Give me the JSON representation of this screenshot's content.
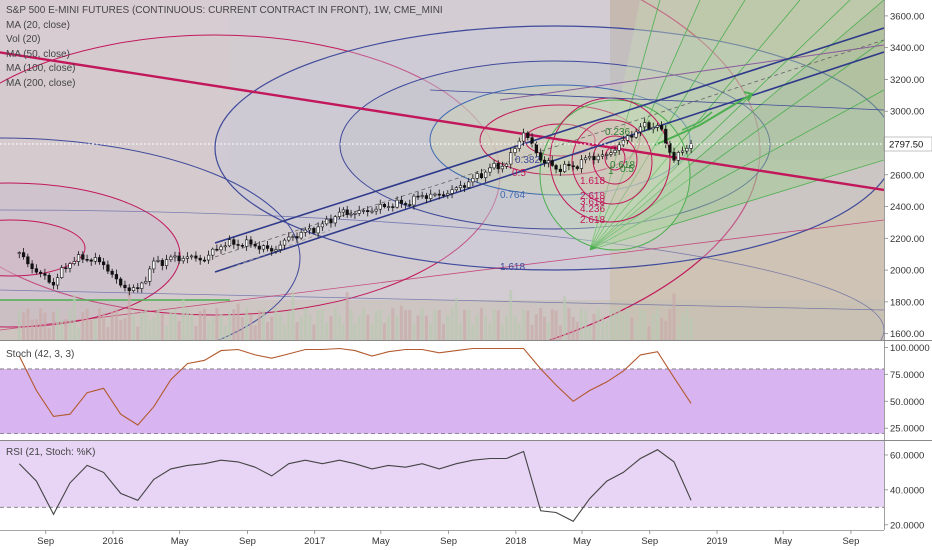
{
  "main_legend": {
    "title": "S&P 500 E-MINI FUTURES (CONTINUOUS: CURRENT CONTRACT IN FRONT), 1W, CME_MINI",
    "ma20": "MA (20, close)",
    "vol": "Vol (20)",
    "ma50": "MA (50, close)",
    "ma100": "MA (100, close)",
    "ma200": "MA (200, close)"
  },
  "stoch_legend": "Stoch (42, 3, 3)",
  "rsi_legend": "RSI (21, Stoch: %K)",
  "current_price": "2797.50",
  "fib_labels": [
    {
      "text": "1.618",
      "color": "#3f4a9a"
    },
    {
      "text": "0.764",
      "color": "#3f6ab0"
    },
    {
      "text": "0.5",
      "color": "#c2185b"
    },
    {
      "text": "0.382",
      "color": "#3f4a9a"
    },
    {
      "text": "1.618",
      "color": "#c2185b"
    },
    {
      "text": "2.618",
      "color": "#c2185b"
    },
    {
      "text": "4.236",
      "color": "#c2185b"
    },
    {
      "text": "3.618",
      "color": "#c2185b"
    },
    {
      "text": "2.618",
      "color": "#c2185b"
    },
    {
      "text": "0.236",
      "color": "#2e7d32"
    },
    {
      "text": "0.618",
      "color": "#2e7d32"
    },
    {
      "text": "1",
      "color": "#2e7d32"
    },
    {
      "text": "0.5",
      "color": "#2e7d32"
    }
  ],
  "colors": {
    "stoch_band": "#d8b4f0",
    "rsi_band": "#e8d4f5",
    "stoch_line": "#b35a2e",
    "rsi_line": "#444444",
    "up_candle": "#ffffff",
    "down_candle": "#111111",
    "fib_pink": "#c2185b",
    "fib_blue": "#3f4a9a",
    "fib_green": "#4caf50"
  },
  "chart_data": [
    {
      "type": "candlestick",
      "title": "S&P 500 E-MINI FUTURES (CONTINUOUS: CURRENT CONTRACT IN FRONT), 1W, CME_MINI",
      "y_axis_ticks": [
        1600,
        1800,
        2000,
        2200,
        2400,
        2600,
        2800,
        3000,
        3200,
        3400,
        3600
      ],
      "y_axis_labels": [
        "1600.00",
        "1800.00",
        "2000.00",
        "2200.00",
        "2400.00",
        "2600.00",
        "2800.00",
        "3000.00",
        "3200.00",
        "3400.00",
        "3600.00"
      ],
      "ylim": [
        1560,
        3700
      ],
      "x_axis_labels": [
        "Sep",
        "2016",
        "May",
        "Sep",
        "2017",
        "May",
        "Sep",
        "2018",
        "May",
        "Sep",
        "2019",
        "May",
        "Sep"
      ],
      "current_value": 2797.5,
      "price_path": [
        {
          "date": "2015-07",
          "close": 2100
        },
        {
          "date": "2015-08",
          "close": 1990
        },
        {
          "date": "2015-09",
          "close": 1920
        },
        {
          "date": "2015-10",
          "close": 2060
        },
        {
          "date": "2015-11",
          "close": 2080
        },
        {
          "date": "2015-12",
          "close": 2040
        },
        {
          "date": "2016-01",
          "close": 1900
        },
        {
          "date": "2016-02",
          "close": 1870
        },
        {
          "date": "2016-03",
          "close": 2040
        },
        {
          "date": "2016-04",
          "close": 2070
        },
        {
          "date": "2016-05",
          "close": 2080
        },
        {
          "date": "2016-06",
          "close": 2070
        },
        {
          "date": "2016-07",
          "close": 2160
        },
        {
          "date": "2016-08",
          "close": 2170
        },
        {
          "date": "2016-09",
          "close": 2160
        },
        {
          "date": "2016-10",
          "close": 2120
        },
        {
          "date": "2016-11",
          "close": 2200
        },
        {
          "date": "2016-12",
          "close": 2240
        },
        {
          "date": "2017-01",
          "close": 2280
        },
        {
          "date": "2017-02",
          "close": 2360
        },
        {
          "date": "2017-03",
          "close": 2360
        },
        {
          "date": "2017-04",
          "close": 2380
        },
        {
          "date": "2017-05",
          "close": 2410
        },
        {
          "date": "2017-06",
          "close": 2420
        },
        {
          "date": "2017-07",
          "close": 2470
        },
        {
          "date": "2017-08",
          "close": 2470
        },
        {
          "date": "2017-09",
          "close": 2510
        },
        {
          "date": "2017-10",
          "close": 2570
        },
        {
          "date": "2017-11",
          "close": 2640
        },
        {
          "date": "2017-12",
          "close": 2670
        },
        {
          "date": "2018-01",
          "close": 2870
        },
        {
          "date": "2018-02",
          "close": 2700
        },
        {
          "date": "2018-03",
          "close": 2640
        },
        {
          "date": "2018-04",
          "close": 2650
        },
        {
          "date": "2018-05",
          "close": 2710
        },
        {
          "date": "2018-06",
          "close": 2720
        },
        {
          "date": "2018-07",
          "close": 2810
        },
        {
          "date": "2018-08",
          "close": 2900
        },
        {
          "date": "2018-09",
          "close": 2915
        },
        {
          "date": "2018-10",
          "close": 2700
        },
        {
          "date": "2018-11",
          "close": 2797.5
        }
      ]
    },
    {
      "type": "line",
      "title": "Stoch (42, 3, 3)",
      "y_axis_ticks": [
        25,
        50,
        75,
        100
      ],
      "y_axis_labels": [
        "25.0000",
        "50.0000",
        "75.0000",
        "100.0000"
      ],
      "ylim": [
        15,
        105
      ],
      "bands": [
        20,
        80
      ],
      "series": [
        {
          "name": "Stoch (42, 3, 3)",
          "values": [
            {
              "date": "2015-07",
              "value": 92
            },
            {
              "date": "2015-08",
              "value": 60
            },
            {
              "date": "2015-09",
              "value": 36
            },
            {
              "date": "2015-10",
              "value": 38
            },
            {
              "date": "2015-11",
              "value": 58
            },
            {
              "date": "2015-12",
              "value": 62
            },
            {
              "date": "2016-01",
              "value": 38
            },
            {
              "date": "2016-02",
              "value": 28
            },
            {
              "date": "2016-03",
              "value": 45
            },
            {
              "date": "2016-04",
              "value": 70
            },
            {
              "date": "2016-05",
              "value": 85
            },
            {
              "date": "2016-06",
              "value": 88
            },
            {
              "date": "2016-07",
              "value": 97
            },
            {
              "date": "2016-08",
              "value": 98
            },
            {
              "date": "2016-09",
              "value": 93
            },
            {
              "date": "2016-10",
              "value": 90
            },
            {
              "date": "2016-11",
              "value": 94
            },
            {
              "date": "2016-12",
              "value": 98
            },
            {
              "date": "2017-01",
              "value": 98
            },
            {
              "date": "2017-02",
              "value": 99
            },
            {
              "date": "2017-03",
              "value": 97
            },
            {
              "date": "2017-04",
              "value": 92
            },
            {
              "date": "2017-05",
              "value": 96
            },
            {
              "date": "2017-06",
              "value": 98
            },
            {
              "date": "2017-07",
              "value": 98
            },
            {
              "date": "2017-08",
              "value": 95
            },
            {
              "date": "2017-09",
              "value": 97
            },
            {
              "date": "2017-10",
              "value": 99
            },
            {
              "date": "2017-11",
              "value": 99
            },
            {
              "date": "2017-12",
              "value": 99
            },
            {
              "date": "2018-01",
              "value": 99
            },
            {
              "date": "2018-02",
              "value": 80
            },
            {
              "date": "2018-03",
              "value": 65
            },
            {
              "date": "2018-04",
              "value": 50
            },
            {
              "date": "2018-05",
              "value": 60
            },
            {
              "date": "2018-06",
              "value": 68
            },
            {
              "date": "2018-07",
              "value": 78
            },
            {
              "date": "2018-08",
              "value": 93
            },
            {
              "date": "2018-09",
              "value": 96
            },
            {
              "date": "2018-10",
              "value": 72
            },
            {
              "date": "2018-11",
              "value": 48
            }
          ]
        }
      ]
    },
    {
      "type": "line",
      "title": "RSI (21, Stoch: %K)",
      "y_axis_ticks": [
        20,
        40,
        60
      ],
      "y_axis_labels": [
        "20.0000",
        "40.0000",
        "60.0000"
      ],
      "ylim": [
        17,
        68
      ],
      "bands": [
        30,
        70
      ],
      "series": [
        {
          "name": "RSI (21, Stoch: %K)",
          "values": [
            {
              "date": "2015-07",
              "value": 55
            },
            {
              "date": "2015-08",
              "value": 45
            },
            {
              "date": "2015-09",
              "value": 26
            },
            {
              "date": "2015-10",
              "value": 44
            },
            {
              "date": "2015-11",
              "value": 54
            },
            {
              "date": "2015-12",
              "value": 50
            },
            {
              "date": "2016-01",
              "value": 38
            },
            {
              "date": "2016-02",
              "value": 34
            },
            {
              "date": "2016-03",
              "value": 46
            },
            {
              "date": "2016-04",
              "value": 52
            },
            {
              "date": "2016-05",
              "value": 54
            },
            {
              "date": "2016-06",
              "value": 55
            },
            {
              "date": "2016-07",
              "value": 57
            },
            {
              "date": "2016-08",
              "value": 56
            },
            {
              "date": "2016-09",
              "value": 53
            },
            {
              "date": "2016-10",
              "value": 48
            },
            {
              "date": "2016-11",
              "value": 55
            },
            {
              "date": "2016-12",
              "value": 57
            },
            {
              "date": "2017-01",
              "value": 55
            },
            {
              "date": "2017-02",
              "value": 57
            },
            {
              "date": "2017-03",
              "value": 55
            },
            {
              "date": "2017-04",
              "value": 52
            },
            {
              "date": "2017-05",
              "value": 54
            },
            {
              "date": "2017-06",
              "value": 53
            },
            {
              "date": "2017-07",
              "value": 55
            },
            {
              "date": "2017-08",
              "value": 52
            },
            {
              "date": "2017-09",
              "value": 55
            },
            {
              "date": "2017-10",
              "value": 57
            },
            {
              "date": "2017-11",
              "value": 58
            },
            {
              "date": "2017-12",
              "value": 58
            },
            {
              "date": "2018-01",
              "value": 62
            },
            {
              "date": "2018-02",
              "value": 28
            },
            {
              "date": "2018-03",
              "value": 27
            },
            {
              "date": "2018-04",
              "value": 22
            },
            {
              "date": "2018-05",
              "value": 35
            },
            {
              "date": "2018-06",
              "value": 45
            },
            {
              "date": "2018-07",
              "value": 50
            },
            {
              "date": "2018-08",
              "value": 58
            },
            {
              "date": "2018-09",
              "value": 63
            },
            {
              "date": "2018-10",
              "value": 56
            },
            {
              "date": "2018-11",
              "value": 34
            }
          ]
        }
      ]
    }
  ]
}
